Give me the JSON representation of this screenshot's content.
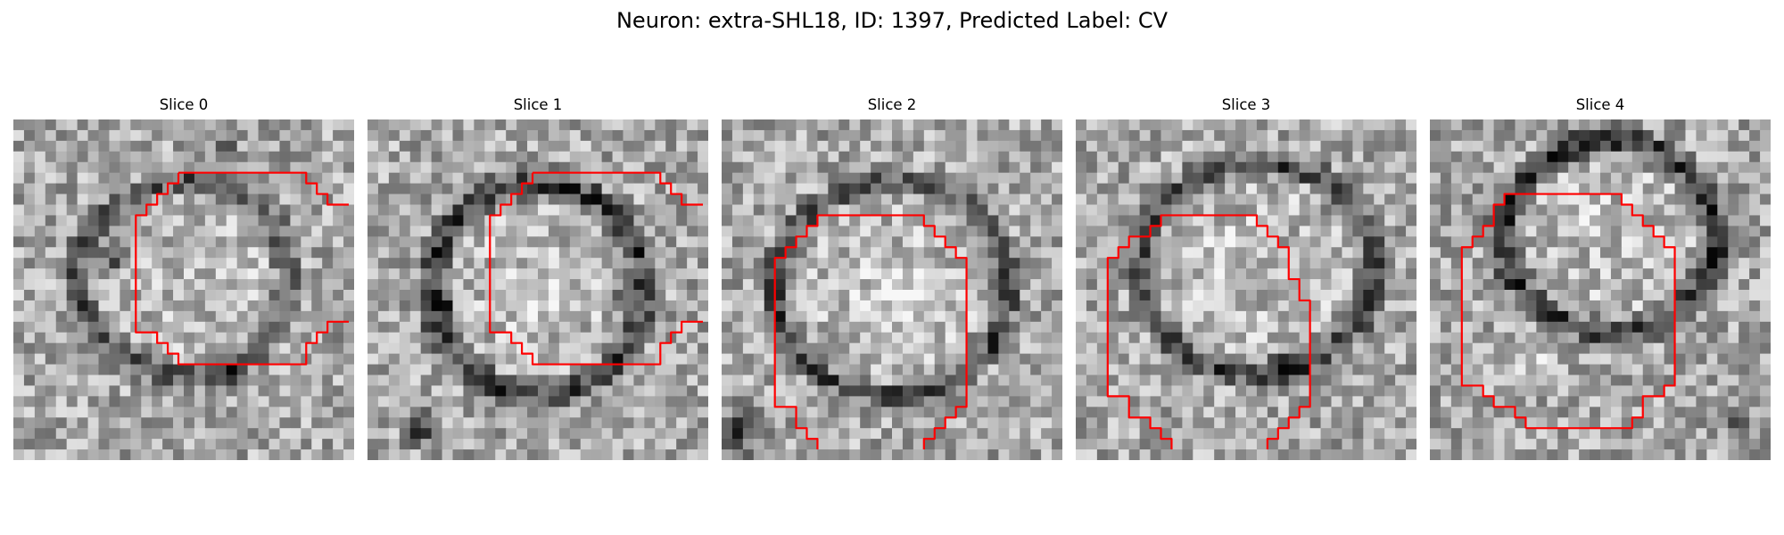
{
  "figure": {
    "suptitle": "Neuron: extra-SHL18, ID: 1397, Predicted Label: CV",
    "outline_color": "#ff0000"
  },
  "slices": [
    {
      "title": "Slice 0"
    },
    {
      "title": "Slice 1"
    },
    {
      "title": "Slice 2"
    },
    {
      "title": "Slice 3"
    },
    {
      "title": "Slice 4"
    }
  ]
}
